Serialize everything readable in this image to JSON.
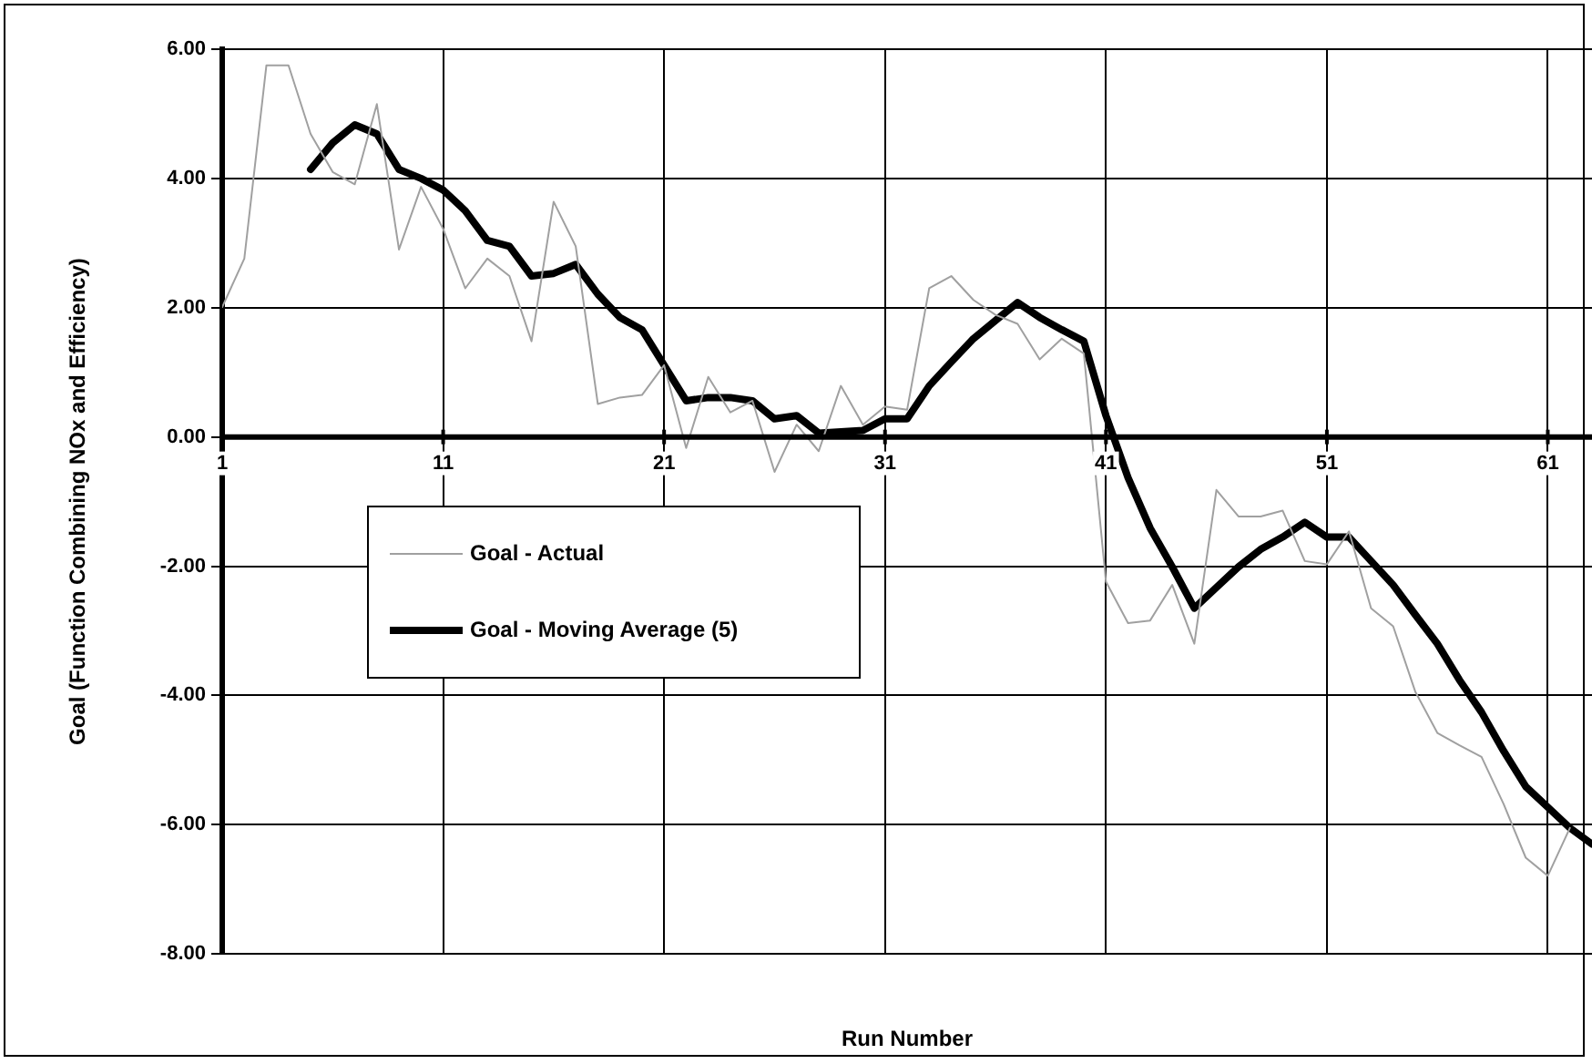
{
  "chart_data": {
    "type": "line",
    "xlabel": "Run Number",
    "ylabel": "Goal (Function Combining NOx and Efficiency)",
    "xlim": [
      1,
      63
    ],
    "xticks": [
      1,
      11,
      21,
      31,
      41,
      51,
      61
    ],
    "ylim": [
      -8,
      6
    ],
    "yticks": [
      {
        "value": -8,
        "label": "-8.00"
      },
      {
        "value": -6,
        "label": "-6.00"
      },
      {
        "value": -4,
        "label": "-4.00"
      },
      {
        "value": -2,
        "label": "-2.00"
      },
      {
        "value": 0,
        "label": "0.00"
      },
      {
        "value": 2,
        "label": "2.00"
      },
      {
        "value": 4,
        "label": "4.00"
      },
      {
        "value": 6,
        "label": "6.00"
      }
    ],
    "grid": true,
    "legend": "left",
    "marker": "none",
    "series": [
      {
        "name": "Goal - Actual",
        "color": "#a0a0a0",
        "x": [
          1,
          2,
          3,
          4,
          5,
          6,
          7,
          8,
          9,
          10,
          11,
          12,
          13,
          14,
          15,
          16,
          17,
          18,
          19,
          20,
          21,
          22,
          23,
          24,
          25,
          26,
          27,
          28,
          29,
          30,
          31,
          32,
          33,
          34,
          35,
          36,
          37,
          38,
          39,
          40,
          41,
          42,
          43,
          44,
          45,
          46,
          47,
          48,
          49,
          50,
          51,
          52,
          53,
          54,
          55,
          56,
          57,
          58,
          59,
          60,
          61,
          62
        ],
        "values": [
          2.01,
          2.76,
          5.75,
          5.75,
          4.69,
          4.1,
          3.91,
          5.15,
          2.9,
          3.87,
          3.22,
          2.3,
          2.76,
          2.49,
          1.48,
          3.64,
          2.95,
          0.51,
          0.61,
          0.65,
          1.11,
          -0.17,
          0.93,
          0.38,
          0.56,
          -0.54,
          0.19,
          -0.22,
          0.79,
          0.19,
          0.47,
          0.42,
          2.3,
          2.49,
          2.12,
          1.89,
          1.75,
          1.2,
          1.52,
          1.29,
          -2.24,
          -2.88,
          -2.84,
          -2.29,
          -3.2,
          -0.82,
          -1.23,
          -1.23,
          -1.14,
          -1.92,
          -1.97,
          -1.46,
          -2.65,
          -2.93,
          -3.94,
          -4.58,
          -4.77,
          -4.95,
          -5.68,
          -6.51,
          -6.79,
          -6.05
        ]
      },
      {
        "name": "Goal - Moving Average (5)",
        "color": "#000000",
        "x": [
          5,
          6,
          7,
          8,
          9,
          10,
          11,
          12,
          13,
          14,
          15,
          16,
          17,
          18,
          19,
          20,
          21,
          22,
          23,
          24,
          25,
          26,
          27,
          28,
          29,
          30,
          31,
          32,
          33,
          34,
          35,
          36,
          37,
          38,
          39,
          40,
          41,
          42,
          43,
          44,
          45,
          46,
          47,
          48,
          49,
          50,
          51,
          52,
          53,
          54,
          55,
          56,
          57,
          58,
          59,
          60,
          61,
          62,
          63
        ],
        "values": [
          4.14,
          4.55,
          4.83,
          4.69,
          4.14,
          4.0,
          3.82,
          3.5,
          3.04,
          2.95,
          2.49,
          2.53,
          2.67,
          2.21,
          1.85,
          1.66,
          1.11,
          0.56,
          0.61,
          0.61,
          0.56,
          0.28,
          0.33,
          0.06,
          0.08,
          0.1,
          0.28,
          0.28,
          0.79,
          1.16,
          1.52,
          1.8,
          2.08,
          1.85,
          1.66,
          1.48,
          0.33,
          -0.63,
          -1.41,
          -2.01,
          -2.65,
          -2.33,
          -2.01,
          -1.74,
          -1.55,
          -1.32,
          -1.55,
          -1.55,
          -1.92,
          -2.29,
          -2.75,
          -3.2,
          -3.76,
          -4.26,
          -4.86,
          -5.41,
          -5.73,
          -6.05,
          -6.3
        ]
      }
    ]
  }
}
